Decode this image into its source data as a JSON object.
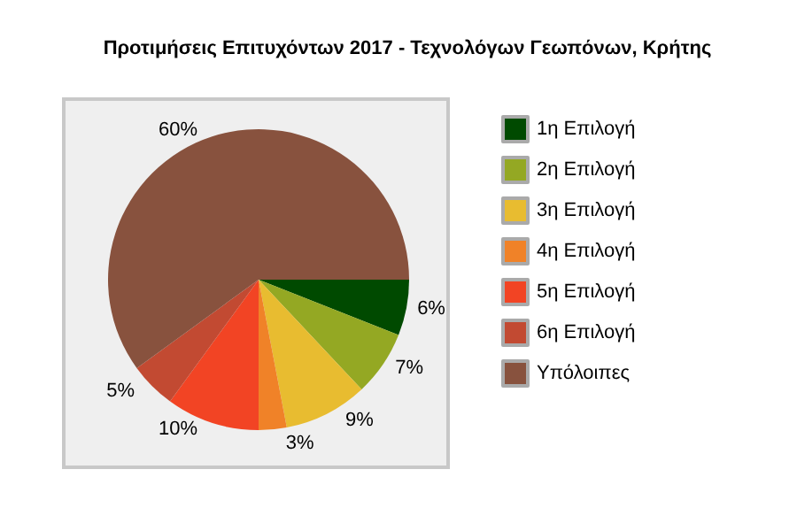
{
  "chart_data": {
    "type": "pie",
    "title": "Προτιμήσεις Επιτυχόντων 2017 - Τεχνολόγων Γεωπόνων, Κρήτης",
    "categories": [
      "1η Επιλογή",
      "2η Επιλογή",
      "3η Επιλογή",
      "4η Επιλογή",
      "5η Επιλογή",
      "6η Επιλογή",
      "Υπόλοιπες"
    ],
    "values": [
      6,
      7,
      9,
      3,
      10,
      5,
      60
    ],
    "colors": [
      "#004a00",
      "#94a823",
      "#e8bc30",
      "#f08228",
      "#f24424",
      "#c24a32",
      "#88523e"
    ],
    "value_labels": [
      "6%",
      "7%",
      "9%",
      "3%",
      "10%",
      "5%",
      "60%"
    ],
    "legend": "right"
  }
}
